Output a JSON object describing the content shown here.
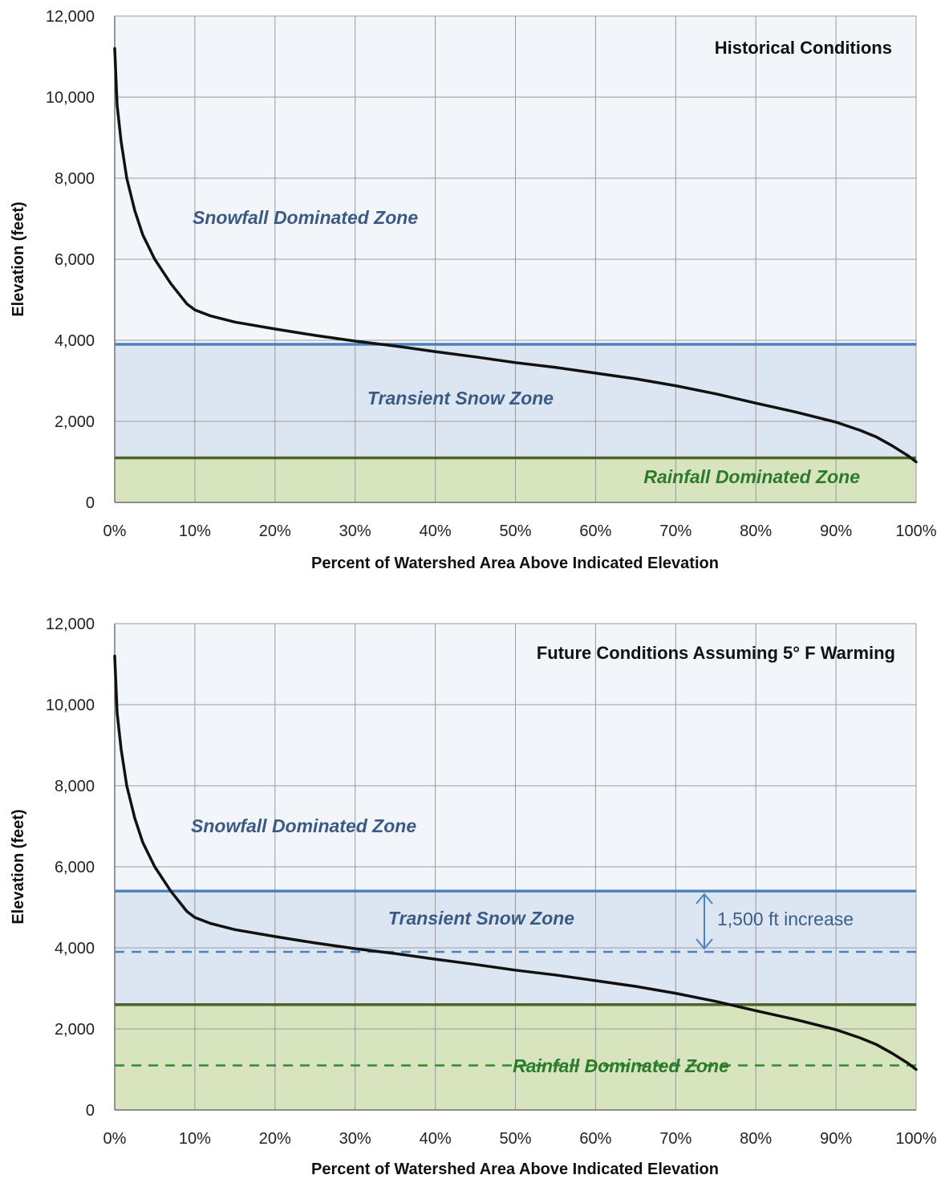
{
  "chart_data": [
    {
      "type": "line",
      "title": "Historical Conditions",
      "xlabel": "Percent of Watershed Area Above Indicated Elevation",
      "ylabel": "Elevation (feet)",
      "xlim": [
        0,
        100
      ],
      "ylim": [
        0,
        12000
      ],
      "x_ticks": [
        "0%",
        "10%",
        "20%",
        "30%",
        "40%",
        "50%",
        "60%",
        "70%",
        "80%",
        "90%",
        "100%"
      ],
      "y_ticks": [
        "0",
        "2,000",
        "4,000",
        "6,000",
        "8,000",
        "10,000",
        "12,000"
      ],
      "grid": true,
      "series": [
        {
          "x": [
            0,
            0.3,
            0.8,
            1.5,
            2.5,
            3.5,
            5,
            7,
            9,
            10,
            12,
            15,
            20,
            25,
            30,
            35,
            40,
            45,
            50,
            55,
            60,
            65,
            70,
            75,
            80,
            85,
            90,
            93,
            95,
            97,
            99,
            100
          ],
          "y": [
            11200,
            9800,
            8900,
            8000,
            7200,
            6600,
            6000,
            5400,
            4900,
            4750,
            4600,
            4450,
            4280,
            4120,
            3980,
            3860,
            3720,
            3590,
            3450,
            3330,
            3190,
            3050,
            2880,
            2680,
            2450,
            2230,
            1980,
            1780,
            1620,
            1400,
            1150,
            1000
          ]
        }
      ],
      "zones": [
        {
          "label": "Snowfall Dominated Zone",
          "from": 3900,
          "to": 12000,
          "color": "#f2f6fb"
        },
        {
          "label": "Transient Snow Zone",
          "from": 1100,
          "to": 3900,
          "color": "#dce6f2"
        },
        {
          "label": "Rainfall Dominated Zone",
          "from": 0,
          "to": 1100,
          "color": "#d7e4bd"
        }
      ],
      "lines": [
        {
          "y": 3900,
          "color": "#4f81bd",
          "style": "solid"
        },
        {
          "y": 1100,
          "color": "#4f6228",
          "style": "solid"
        }
      ]
    },
    {
      "type": "line",
      "title": "Future Conditions Assuming 5° F Warming",
      "xlabel": "Percent of Watershed Area Above Indicated Elevation",
      "ylabel": "Elevation (feet)",
      "xlim": [
        0,
        100
      ],
      "ylim": [
        0,
        12000
      ],
      "x_ticks": [
        "0%",
        "10%",
        "20%",
        "30%",
        "40%",
        "50%",
        "60%",
        "70%",
        "80%",
        "90%",
        "100%"
      ],
      "y_ticks": [
        "0",
        "2,000",
        "4,000",
        "6,000",
        "8,000",
        "10,000",
        "12,000"
      ],
      "grid": true,
      "series": [
        {
          "x": [
            0,
            0.3,
            0.8,
            1.5,
            2.5,
            3.5,
            5,
            7,
            9,
            10,
            12,
            15,
            20,
            25,
            30,
            35,
            40,
            45,
            50,
            55,
            60,
            65,
            70,
            75,
            80,
            85,
            90,
            93,
            95,
            97,
            99,
            100
          ],
          "y": [
            11200,
            9800,
            8900,
            8000,
            7200,
            6600,
            6000,
            5400,
            4900,
            4750,
            4600,
            4450,
            4280,
            4120,
            3980,
            3860,
            3720,
            3590,
            3450,
            3330,
            3190,
            3050,
            2880,
            2680,
            2450,
            2230,
            1980,
            1780,
            1620,
            1400,
            1150,
            1000
          ]
        }
      ],
      "zones": [
        {
          "label": "Snowfall Dominated Zone",
          "from": 5400,
          "to": 12000,
          "color": "#f2f6fb"
        },
        {
          "label": "Transient Snow Zone",
          "from": 2600,
          "to": 5400,
          "color": "#dce6f2"
        },
        {
          "label": "Rainfall Dominated Zone",
          "from": 0,
          "to": 2600,
          "color": "#d7e4bd"
        }
      ],
      "lines": [
        {
          "y": 5400,
          "color": "#4f81bd",
          "style": "solid"
        },
        {
          "y": 3900,
          "color": "#4f81bd",
          "style": "dashed"
        },
        {
          "y": 2600,
          "color": "#4f6228",
          "style": "solid"
        },
        {
          "y": 1100,
          "color": "#2e8b2e",
          "style": "dashed"
        }
      ],
      "annotation": {
        "text": "1,500 ft increase",
        "from": 3900,
        "to": 5400,
        "x": 73.5
      }
    }
  ]
}
